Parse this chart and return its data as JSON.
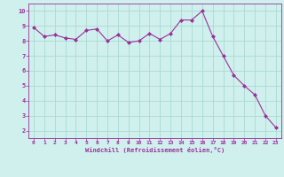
{
  "x": [
    0,
    1,
    2,
    3,
    4,
    5,
    6,
    7,
    8,
    9,
    10,
    11,
    12,
    13,
    14,
    15,
    16,
    17,
    18,
    19,
    20,
    21,
    22,
    23
  ],
  "y": [
    8.9,
    8.3,
    8.4,
    8.2,
    8.1,
    8.7,
    8.8,
    8.0,
    8.4,
    7.9,
    8.0,
    8.5,
    8.1,
    8.5,
    9.4,
    9.4,
    10.0,
    8.3,
    7.0,
    5.7,
    5.0,
    4.4,
    3.0,
    2.2
  ],
  "line_color": "#9b309b",
  "marker_color": "#9b309b",
  "bg_color": "#cff0ec",
  "grid_color": "#aadad5",
  "xlabel": "Windchill (Refroidissement éolien,°C)",
  "xlabel_color": "#9b309b",
  "tick_color": "#9b309b",
  "spine_color": "#9b309b",
  "ylim": [
    1.5,
    10.5
  ],
  "xlim": [
    -0.5,
    23.5
  ],
  "yticks": [
    2,
    3,
    4,
    5,
    6,
    7,
    8,
    9,
    10
  ],
  "xticks": [
    0,
    1,
    2,
    3,
    4,
    5,
    6,
    7,
    8,
    9,
    10,
    11,
    12,
    13,
    14,
    15,
    16,
    17,
    18,
    19,
    20,
    21,
    22,
    23
  ],
  "xtick_labels": [
    "0",
    "1",
    "2",
    "3",
    "4",
    "5",
    "6",
    "7",
    "8",
    "9",
    "10",
    "11",
    "12",
    "13",
    "14",
    "15",
    "16",
    "17",
    "18",
    "19",
    "20",
    "21",
    "22",
    "23"
  ],
  "ytick_labels": [
    "2",
    "3",
    "4",
    "5",
    "6",
    "7",
    "8",
    "9",
    "10"
  ]
}
